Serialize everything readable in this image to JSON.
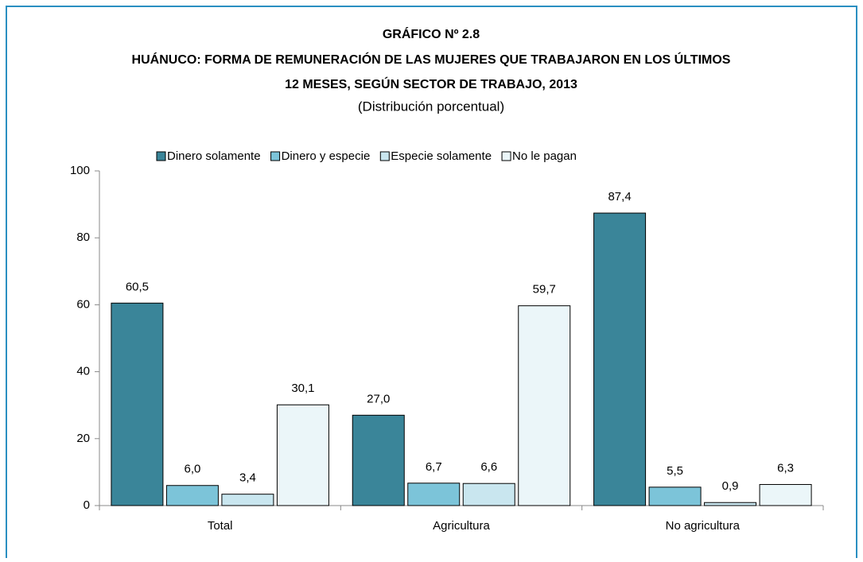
{
  "chart_data": {
    "type": "bar",
    "title": [
      "GRÁFICO Nº 2.8",
      "HUÁNUCO: FORMA DE REMUNERACIÓN DE LAS MUJERES QUE TRABAJARON EN LOS ÚLTIMOS",
      "12 MESES, SEGÚN SECTOR DE TRABAJO, 2013"
    ],
    "subtitle": "(Distribución porcentual)",
    "categories": [
      "Total",
      "Agricultura",
      "No agricultura"
    ],
    "series": [
      {
        "name": "Dinero solamente",
        "color": "#3a8599",
        "values": [
          60.5,
          27.0,
          87.4
        ],
        "value_labels": [
          "60,5",
          "27,0",
          "87,4"
        ]
      },
      {
        "name": "Dinero y especie",
        "color": "#7cc4d9",
        "values": [
          6.0,
          6.7,
          5.5
        ],
        "value_labels": [
          "6,0",
          "6,7",
          "5,5"
        ]
      },
      {
        "name": "Especie solamente",
        "color": "#c9e6ef",
        "values": [
          3.4,
          6.6,
          0.9
        ],
        "value_labels": [
          "3,4",
          "6,6",
          "0,9"
        ]
      },
      {
        "name": "No le pagan",
        "color": "#ebf6f9",
        "values": [
          30.1,
          59.7,
          6.3
        ],
        "value_labels": [
          "30,1",
          "59,7",
          "6,3"
        ]
      }
    ],
    "ylim": [
      0,
      100
    ],
    "yticks": [
      0,
      20,
      40,
      60,
      80,
      100
    ],
    "legend": "top"
  }
}
